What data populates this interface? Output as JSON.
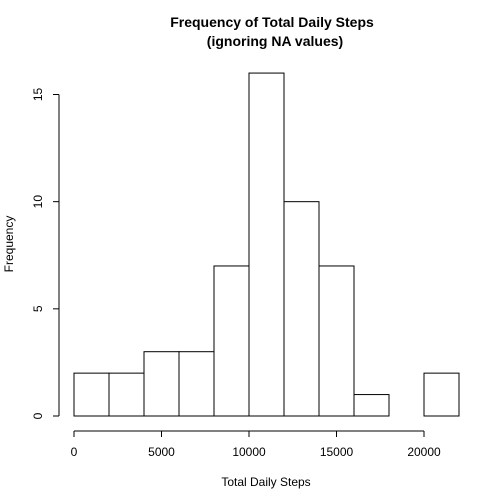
{
  "chart_data": {
    "type": "bar",
    "title": "Frequency of Total Daily Steps",
    "subtitle": "(ignoring NA values)",
    "xlabel": "Total Daily Steps",
    "ylabel": "Frequency",
    "bins": [
      {
        "start": 0,
        "end": 2000,
        "count": 2
      },
      {
        "start": 2000,
        "end": 4000,
        "count": 2
      },
      {
        "start": 4000,
        "end": 6000,
        "count": 3
      },
      {
        "start": 6000,
        "end": 8000,
        "count": 3
      },
      {
        "start": 8000,
        "end": 10000,
        "count": 7
      },
      {
        "start": 10000,
        "end": 12000,
        "count": 16
      },
      {
        "start": 12000,
        "end": 14000,
        "count": 10
      },
      {
        "start": 14000,
        "end": 16000,
        "count": 7
      },
      {
        "start": 16000,
        "end": 18000,
        "count": 1
      },
      {
        "start": 18000,
        "end": 20000,
        "count": 0
      },
      {
        "start": 20000,
        "end": 22000,
        "count": 2
      }
    ],
    "xticks": [
      0,
      5000,
      10000,
      15000,
      20000
    ],
    "yticks": [
      0,
      5,
      10,
      15
    ],
    "xlim": [
      0,
      22000
    ],
    "ylim": [
      0,
      16
    ],
    "grid": false
  }
}
